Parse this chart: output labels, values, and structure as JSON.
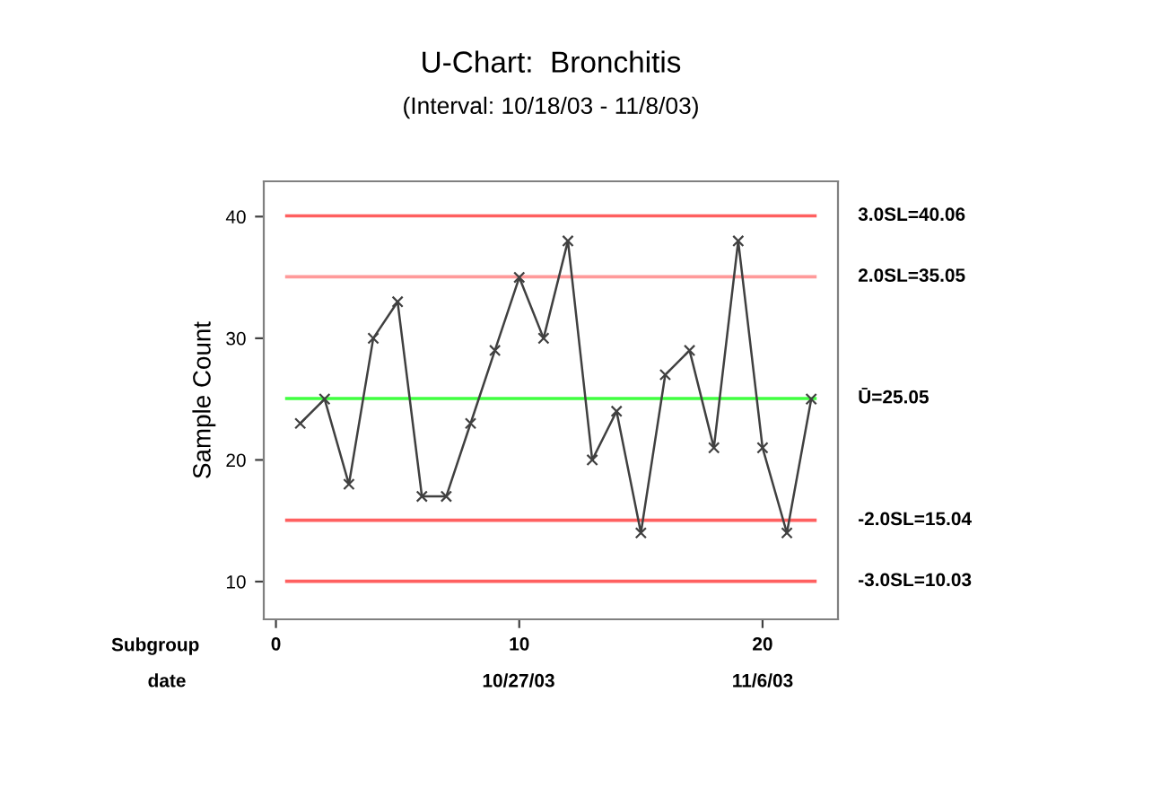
{
  "chart_data": {
    "type": "line",
    "title": "U-Chart:  Bronchitis",
    "subtitle": "(Interval: 10/18/03 - 11/8/03)",
    "ylabel": "Sample Count",
    "xlabel": "Subgroup",
    "annotations": [
      "date",
      "10/27/03",
      "11/6/03"
    ],
    "x": [
      1,
      2,
      3,
      4,
      5,
      6,
      7,
      8,
      9,
      10,
      11,
      12,
      13,
      14,
      15,
      16,
      17,
      18,
      19,
      20,
      21,
      22
    ],
    "series": [
      {
        "color": "#404040",
        "values": [
          23,
          25,
          18,
          30,
          33,
          17,
          17,
          23,
          29,
          35,
          30,
          38,
          20,
          24,
          14,
          27,
          29,
          21,
          38,
          21,
          14,
          25
        ]
      }
    ],
    "marker": "cross",
    "line_style": "solid",
    "grid": false,
    "xlim": [
      -0.5,
      23.1
    ],
    "ylim": [
      6.9,
      42.9
    ],
    "xticks": [
      0,
      10,
      20
    ],
    "yticks": [
      10,
      20,
      30,
      40
    ],
    "ref_lines": [
      {
        "axis": "y",
        "value": 40.06,
        "label": "3.0SL=40.06",
        "color": "#ff6060"
      },
      {
        "axis": "y",
        "value": 35.05,
        "label": "2.0SL=35.05",
        "color": "#ff9a9a"
      },
      {
        "axis": "y",
        "value": 25.05,
        "label": "Ū=25.05",
        "color": "#40ff40"
      },
      {
        "axis": "y",
        "value": 15.04,
        "label": "-2.0SL=15.04",
        "color": "#ff6060"
      },
      {
        "axis": "y",
        "value": 10.03,
        "label": "-3.0SL=10.03",
        "color": "#ff6060"
      }
    ]
  }
}
